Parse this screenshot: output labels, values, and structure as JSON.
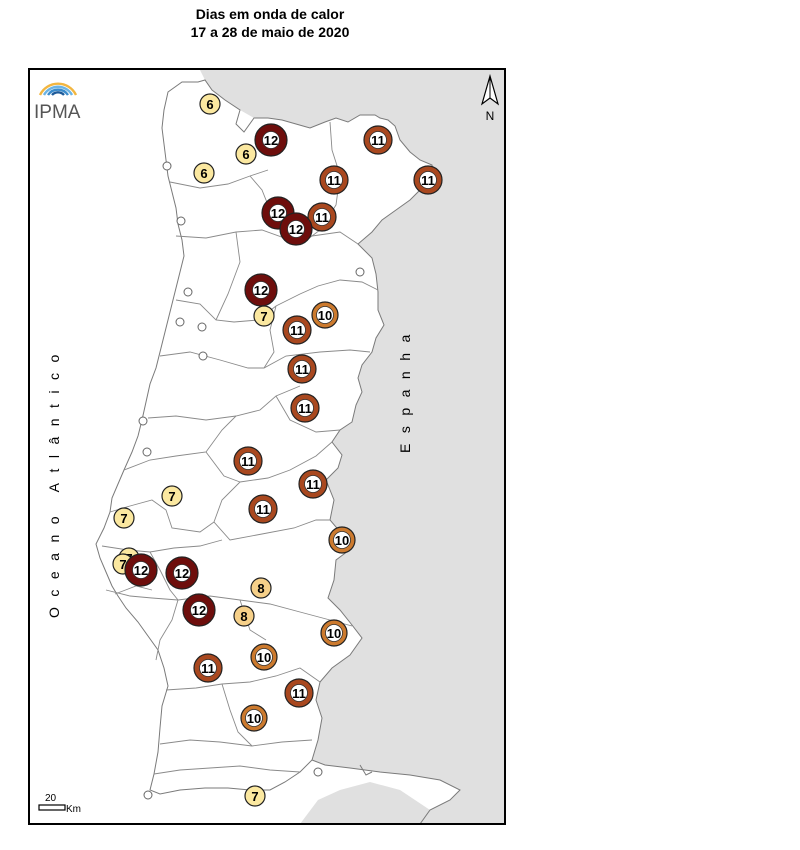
{
  "title": {
    "line1": "Dias em onda de calor",
    "line2": "17 a 28 de maio de 2020"
  },
  "logo": {
    "text": "IPMA"
  },
  "north_arrow": {
    "label": "N"
  },
  "scale_bar": {
    "value": "20",
    "unit": "Km"
  },
  "labels": {
    "ocean": "Oceano Atlântico",
    "spain": "Espanha"
  },
  "colors": {
    "spain_land": "#e0e0e0",
    "portugal_land": "#ffffff",
    "boundary": "#7a7a7a",
    "class_6_7": "#fbe8a0",
    "class_8": "#f6d089",
    "class_10": "#cc7a2e",
    "class_11": "#a9481f",
    "class_12": "#6e0e0c"
  },
  "stations": [
    {
      "value": 6,
      "lon": 210,
      "lat": 104
    },
    {
      "value": 12,
      "lon": 271,
      "lat": 140
    },
    {
      "value": 6,
      "lon": 246,
      "lat": 154
    },
    {
      "value": 6,
      "lon": 204,
      "lat": 173
    },
    {
      "value": 11,
      "lon": 378,
      "lat": 140
    },
    {
      "value": 11,
      "lon": 334,
      "lat": 180
    },
    {
      "value": 11,
      "lon": 428,
      "lat": 180
    },
    {
      "value": 12,
      "lon": 278,
      "lat": 213
    },
    {
      "value": 11,
      "lon": 322,
      "lat": 217
    },
    {
      "value": 12,
      "lon": 296,
      "lat": 229
    },
    {
      "value": 12,
      "lon": 261,
      "lat": 290
    },
    {
      "value": 7,
      "lon": 264,
      "lat": 316
    },
    {
      "value": 10,
      "lon": 325,
      "lat": 315
    },
    {
      "value": 11,
      "lon": 297,
      "lat": 330
    },
    {
      "value": 11,
      "lon": 302,
      "lat": 369
    },
    {
      "value": 11,
      "lon": 305,
      "lat": 408
    },
    {
      "value": 11,
      "lon": 248,
      "lat": 461
    },
    {
      "value": 11,
      "lon": 313,
      "lat": 484
    },
    {
      "value": 7,
      "lon": 172,
      "lat": 496
    },
    {
      "value": 11,
      "lon": 263,
      "lat": 509
    },
    {
      "value": 7,
      "lon": 124,
      "lat": 518
    },
    {
      "value": 10,
      "lon": 342,
      "lat": 540
    },
    {
      "value": 7,
      "lon": 129,
      "lat": 558
    },
    {
      "value": 7,
      "lon": 123,
      "lat": 564
    },
    {
      "value": 12,
      "lon": 141,
      "lat": 570
    },
    {
      "value": 12,
      "lon": 182,
      "lat": 573
    },
    {
      "value": 8,
      "lon": 261,
      "lat": 588
    },
    {
      "value": 12,
      "lon": 199,
      "lat": 610
    },
    {
      "value": 8,
      "lon": 244,
      "lat": 616
    },
    {
      "value": 10,
      "lon": 334,
      "lat": 633
    },
    {
      "value": 10,
      "lon": 264,
      "lat": 657
    },
    {
      "value": 11,
      "lon": 208,
      "lat": 668
    },
    {
      "value": 11,
      "lon": 299,
      "lat": 693
    },
    {
      "value": 10,
      "lon": 254,
      "lat": 718
    },
    {
      "value": 7,
      "lon": 255,
      "lat": 796
    }
  ]
}
